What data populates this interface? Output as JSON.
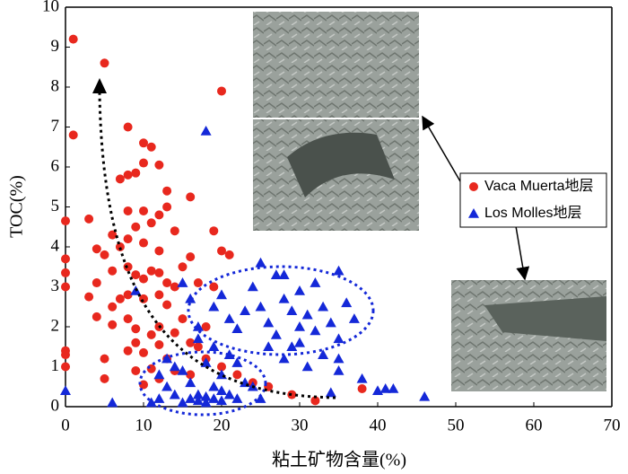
{
  "chart_data": {
    "type": "scatter",
    "x_label": "粘土矿物含量(%)",
    "y_label": "TOC(%)",
    "xlim": [
      0,
      70
    ],
    "xticks": [
      0,
      10,
      20,
      30,
      40,
      50,
      60,
      70
    ],
    "ylim": [
      0,
      10
    ],
    "yticks": [
      0,
      1,
      2,
      3,
      4,
      5,
      6,
      7,
      8,
      9,
      10
    ],
    "series": [
      {
        "name": "Vaca Muerta地层",
        "color": "#e8281e",
        "marker": "circle",
        "x": [
          1,
          5,
          20,
          1,
          8,
          10,
          11,
          12,
          10,
          9,
          16,
          13,
          8,
          7,
          19,
          0,
          3,
          6,
          8,
          10,
          11,
          13,
          12,
          14,
          9,
          7,
          4,
          5,
          8,
          10,
          12,
          16,
          20,
          21,
          0,
          0,
          0,
          4,
          6,
          8,
          9,
          10,
          11,
          12,
          13,
          14,
          15,
          17,
          19,
          3,
          6,
          7,
          8,
          10,
          12,
          13,
          15,
          4,
          6,
          8,
          9,
          11,
          12,
          14,
          16,
          18,
          0,
          0,
          5,
          8,
          9,
          10,
          12,
          13,
          17,
          18,
          0,
          9,
          11,
          14,
          16,
          12,
          10,
          22,
          24,
          26,
          29,
          32,
          38,
          5,
          20
        ],
        "y": [
          9.2,
          8.6,
          7.9,
          6.8,
          7,
          6.6,
          6.5,
          6.05,
          6.1,
          5.85,
          5.25,
          5.4,
          5.8,
          5.7,
          4.4,
          4.65,
          4.7,
          4.3,
          4.9,
          4.9,
          4.6,
          5.0,
          4.8,
          4.4,
          4.5,
          4.0,
          3.95,
          3.8,
          4.2,
          4.1,
          3.9,
          3.75,
          3.9,
          3.8,
          3.7,
          3.35,
          3.0,
          3.1,
          3.4,
          3.5,
          3.3,
          3.2,
          3.4,
          3.35,
          3.1,
          3.0,
          3.5,
          3.1,
          3.0,
          2.75,
          2.5,
          2.7,
          2.8,
          2.7,
          2.8,
          2.55,
          2.2,
          2.25,
          2.05,
          2.2,
          1.95,
          1.8,
          2.0,
          1.85,
          1.6,
          2.0,
          1.4,
          1.3,
          1.2,
          1.4,
          1.6,
          1.35,
          1.55,
          1.2,
          1.5,
          1.2,
          1.0,
          0.9,
          0.95,
          0.9,
          0.8,
          0.7,
          0.55,
          0.8,
          0.6,
          0.5,
          0.3,
          0.15,
          0.45,
          0.7,
          1.0
        ]
      },
      {
        "name": "Los Molles地层",
        "color": "#1428d8",
        "marker": "triangle",
        "x": [
          0,
          9,
          18,
          15,
          16,
          17,
          19,
          20,
          21,
          22,
          24,
          25,
          25,
          26,
          27,
          28,
          28,
          29,
          30,
          30,
          31,
          32,
          32,
          33,
          34,
          35,
          35,
          36,
          37,
          27,
          26,
          28,
          30,
          33,
          35,
          35,
          38,
          42,
          41,
          46,
          40,
          22,
          23,
          20,
          21,
          18,
          19,
          17,
          16,
          15,
          14,
          13,
          12,
          12,
          11,
          18,
          19,
          20,
          21,
          22,
          24,
          25,
          16,
          15,
          14,
          13,
          19,
          17,
          23,
          29,
          31,
          34,
          6,
          18,
          20,
          17
        ],
        "y": [
          0.4,
          2.9,
          6.9,
          3.1,
          2.7,
          2.0,
          2.5,
          2.8,
          2.2,
          1.95,
          3.0,
          3.6,
          2.5,
          2.1,
          3.3,
          3.3,
          2.7,
          2.4,
          2.0,
          2.9,
          2.3,
          1.9,
          3.1,
          2.5,
          2.1,
          3.4,
          1.7,
          2.6,
          2.2,
          1.8,
          1.5,
          1.2,
          1.6,
          1.3,
          0.9,
          1.2,
          0.7,
          0.45,
          0.45,
          0.25,
          0.4,
          1.1,
          0.6,
          0.8,
          1.3,
          1.1,
          0.5,
          0.3,
          0.2,
          0.1,
          0.3,
          0.5,
          0.8,
          0.2,
          0.1,
          0.1,
          0.2,
          0.15,
          0.3,
          0.2,
          0.5,
          0.2,
          0.6,
          0.9,
          1.0,
          1.2,
          1.5,
          1.7,
          2.4,
          1.5,
          1.0,
          0.35,
          0.1,
          0.25,
          0.4,
          0.15
        ]
      }
    ]
  }
}
